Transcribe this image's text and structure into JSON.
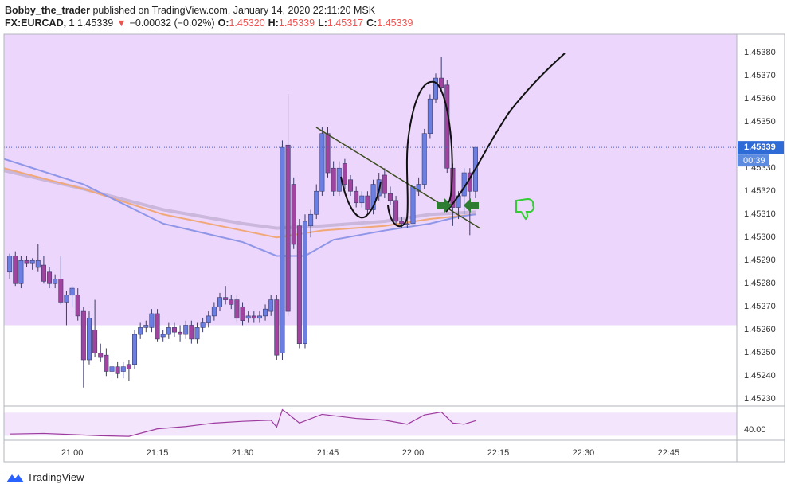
{
  "header": {
    "author": "Bobby_the_trader",
    "published": "published on TradingView.com, January 14, 2020 22:11:20 MSK",
    "symbol": "FX:EURCAD, 1",
    "price": "1.45339",
    "arrow": "▼",
    "change": "−0.00032 (−0.02%)",
    "ohlc": [
      {
        "label": "O:",
        "value": "1.45320"
      },
      {
        "label": "H:",
        "value": "1.45339"
      },
      {
        "label": "L:",
        "value": "1.45317"
      },
      {
        "label": "C:",
        "value": "1.45339"
      }
    ]
  },
  "footer": "TradingView",
  "chart_data": {
    "type": "candlestick",
    "up_color": "#6b7fe3",
    "down_color": "#a0449f",
    "x": [
      "20:49",
      "20:50",
      "20:51",
      "20:52",
      "20:53",
      "20:54",
      "20:55",
      "20:56",
      "20:57",
      "20:58",
      "20:59",
      "21:00",
      "21:01",
      "21:02",
      "21:03",
      "21:04",
      "21:05",
      "21:06",
      "21:07",
      "21:08",
      "21:09",
      "21:10",
      "21:11",
      "21:12",
      "21:13",
      "21:14",
      "21:15",
      "21:16",
      "21:17",
      "21:18",
      "21:19",
      "21:20",
      "21:21",
      "21:22",
      "21:23",
      "21:24",
      "21:25",
      "21:26",
      "21:27",
      "21:28",
      "21:29",
      "21:30",
      "21:31",
      "21:32",
      "21:33",
      "21:34",
      "21:35",
      "21:36",
      "21:37",
      "21:38",
      "21:39",
      "21:40",
      "21:41",
      "21:42",
      "21:43",
      "21:44",
      "21:45",
      "21:46",
      "21:47",
      "21:48",
      "21:49",
      "21:50",
      "21:51",
      "21:52",
      "21:53",
      "21:54",
      "21:55",
      "21:56",
      "21:57",
      "21:58",
      "21:59",
      "22:00",
      "22:01",
      "22:02",
      "22:03",
      "22:04",
      "22:05",
      "22:06",
      "22:07",
      "22:08",
      "22:09",
      "22:10",
      "22:11"
    ],
    "candles": [
      [
        1.45285,
        1.45293,
        1.45282,
        1.45292
      ],
      [
        1.45292,
        1.45294,
        1.45279,
        1.4528
      ],
      [
        1.4528,
        1.45292,
        1.45278,
        1.4529
      ],
      [
        1.4529,
        1.45292,
        1.45287,
        1.45289
      ],
      [
        1.45289,
        1.45291,
        1.45286,
        1.4529
      ],
      [
        1.45287,
        1.45297,
        1.45285,
        1.4529
      ],
      [
        1.45288,
        1.45292,
        1.4528,
        1.45281
      ],
      [
        1.45285,
        1.45287,
        1.45278,
        1.4528
      ],
      [
        1.4528,
        1.45284,
        1.45278,
        1.45282
      ],
      [
        1.45282,
        1.45292,
        1.45271,
        1.45272
      ],
      [
        1.45272,
        1.45277,
        1.45262,
        1.45275
      ],
      [
        1.45275,
        1.45279,
        1.4527,
        1.45278
      ],
      [
        1.45275,
        1.45278,
        1.45264,
        1.45266
      ],
      [
        1.45268,
        1.4527,
        1.45235,
        1.45247
      ],
      [
        1.45247,
        1.45268,
        1.45245,
        1.45265
      ],
      [
        1.4526,
        1.45273,
        1.45248,
        1.4525
      ],
      [
        1.4525,
        1.45254,
        1.45246,
        1.45248
      ],
      [
        1.45249,
        1.45252,
        1.4524,
        1.45242
      ],
      [
        1.45242,
        1.45246,
        1.4524,
        1.45244
      ],
      [
        1.45244,
        1.45246,
        1.45239,
        1.45241
      ],
      [
        1.45242,
        1.45246,
        1.45239,
        1.45244
      ],
      [
        1.45245,
        1.45247,
        1.45238,
        1.45243
      ],
      [
        1.45245,
        1.4526,
        1.45243,
        1.45258
      ],
      [
        1.45258,
        1.45263,
        1.45256,
        1.45261
      ],
      [
        1.45261,
        1.45264,
        1.45259,
        1.45262
      ],
      [
        1.45261,
        1.45269,
        1.45259,
        1.45267
      ],
      [
        1.45267,
        1.45269,
        1.45255,
        1.45256
      ],
      [
        1.45257,
        1.4526,
        1.45255,
        1.45258
      ],
      [
        1.45258,
        1.45263,
        1.45256,
        1.45261
      ],
      [
        1.45261,
        1.45263,
        1.45257,
        1.45259
      ],
      [
        1.45259,
        1.45262,
        1.45255,
        1.45258
      ],
      [
        1.45258,
        1.45264,
        1.45256,
        1.45262
      ],
      [
        1.45262,
        1.45264,
        1.45254,
        1.45256
      ],
      [
        1.45256,
        1.45263,
        1.45254,
        1.45261
      ],
      [
        1.45261,
        1.45265,
        1.45259,
        1.45263
      ],
      [
        1.45263,
        1.45268,
        1.45261,
        1.45266
      ],
      [
        1.45266,
        1.45272,
        1.45264,
        1.4527
      ],
      [
        1.4527,
        1.45276,
        1.45268,
        1.45274
      ],
      [
        1.45274,
        1.45279,
        1.45271,
        1.45273
      ],
      [
        1.45273,
        1.45275,
        1.45269,
        1.45271
      ],
      [
        1.45273,
        1.45275,
        1.45263,
        1.45265
      ],
      [
        1.4527,
        1.45272,
        1.45262,
        1.45264
      ],
      [
        1.45265,
        1.45268,
        1.45263,
        1.45266
      ],
      [
        1.45266,
        1.45268,
        1.45263,
        1.45265
      ],
      [
        1.45265,
        1.45268,
        1.45263,
        1.45266
      ],
      [
        1.45266,
        1.45271,
        1.45264,
        1.45269
      ],
      [
        1.45268,
        1.45275,
        1.45266,
        1.45273
      ],
      [
        1.45273,
        1.45275,
        1.45247,
        1.45249
      ],
      [
        1.4525,
        1.45342,
        1.45247,
        1.45339
      ],
      [
        1.4534,
        1.45362,
        1.45266,
        1.45268
      ],
      [
        1.45323,
        1.45326,
        1.45295,
        1.45297
      ],
      [
        1.45305,
        1.45308,
        1.45252,
        1.45254
      ],
      [
        1.45254,
        1.4531,
        1.45252,
        1.45307
      ],
      [
        1.45305,
        1.45312,
        1.453,
        1.4531
      ],
      [
        1.4531,
        1.45323,
        1.45308,
        1.4532
      ],
      [
        1.4532,
        1.45348,
        1.45318,
        1.45345
      ],
      [
        1.45345,
        1.45348,
        1.45326,
        1.45328
      ],
      [
        1.4533,
        1.45333,
        1.45318,
        1.4532
      ],
      [
        1.4532,
        1.45333,
        1.45318,
        1.4533
      ],
      [
        1.45332,
        1.45334,
        1.45321,
        1.45323
      ],
      [
        1.45325,
        1.45327,
        1.45318,
        1.4532
      ],
      [
        1.4532,
        1.45322,
        1.45313,
        1.45315
      ],
      [
        1.45315,
        1.4532,
        1.45313,
        1.45318
      ],
      [
        1.45318,
        1.4532,
        1.4531,
        1.45312
      ],
      [
        1.45312,
        1.45325,
        1.4531,
        1.45323
      ],
      [
        1.45318,
        1.45328,
        1.45316,
        1.45325
      ],
      [
        1.45327,
        1.4533,
        1.45317,
        1.45319
      ],
      [
        1.45319,
        1.45322,
        1.45314,
        1.45316
      ],
      [
        1.45316,
        1.45318,
        1.45305,
        1.45307
      ],
      [
        1.45307,
        1.45309,
        1.45304,
        1.45306
      ],
      [
        1.45306,
        1.45308,
        1.45304,
        1.45306
      ],
      [
        1.45306,
        1.45324,
        1.45304,
        1.45322
      ],
      [
        1.4532,
        1.45326,
        1.45318,
        1.45323
      ],
      [
        1.45323,
        1.45347,
        1.45321,
        1.45345
      ],
      [
        1.45345,
        1.45362,
        1.45343,
        1.4536
      ],
      [
        1.4536,
        1.45371,
        1.45358,
        1.45369
      ],
      [
        1.45369,
        1.45378,
        1.45363,
        1.45365
      ],
      [
        1.45366,
        1.45368,
        1.45328,
        1.4533
      ],
      [
        1.4533,
        1.45332,
        1.45305,
        1.45313
      ],
      [
        1.45313,
        1.4532,
        1.45308,
        1.45318
      ],
      [
        1.45318,
        1.4533,
        1.4531,
        1.45328
      ],
      [
        1.45328,
        1.4533,
        1.45301,
        1.4532
      ],
      [
        1.4532,
        1.45339,
        1.45317,
        1.45339
      ]
    ],
    "xlim": [
      "20:48",
      "22:57"
    ],
    "xticks": [
      "21:00",
      "21:15",
      "21:30",
      "21:45",
      "22:00",
      "22:15",
      "22:30",
      "22:45"
    ],
    "ylim": [
      1.45227,
      1.45388
    ],
    "yticks": [
      {
        "value": 1.4523,
        "label": "1.45230"
      },
      {
        "value": 1.4524,
        "label": "1.45240"
      },
      {
        "value": 1.4525,
        "label": "1.45250"
      },
      {
        "value": 1.4526,
        "label": "1.45260"
      },
      {
        "value": 1.4527,
        "label": "1.45270"
      },
      {
        "value": 1.4528,
        "label": "1.45280"
      },
      {
        "value": 1.4529,
        "label": "1.45290"
      },
      {
        "value": 1.453,
        "label": "1.45300"
      },
      {
        "value": 1.4531,
        "label": "1.45310"
      },
      {
        "value": 1.4532,
        "label": "1.45320"
      },
      {
        "value": 1.4533,
        "label": "1.45330"
      },
      {
        "value": 1.4534,
        "label": "1.45340"
      },
      {
        "value": 1.4535,
        "label": "1.45350"
      },
      {
        "value": 1.4536,
        "label": "1.45360"
      },
      {
        "value": 1.4537,
        "label": "1.45370"
      },
      {
        "value": 1.4538,
        "label": "1.45380"
      }
    ],
    "grid": true,
    "highlight_zone": {
      "from": 1.45262,
      "color": "#ecd6fb"
    },
    "last_price": {
      "value": 1.45339,
      "label": "1.45339"
    },
    "countdown": "00:39",
    "moving_averages": [
      {
        "color": "#cbb6dc",
        "x": [
          "20:48",
          "21:02",
          "21:16",
          "21:30",
          "21:36",
          "21:44",
          "21:55",
          "22:03",
          "22:11"
        ],
        "values": [
          1.45329,
          1.45321,
          1.45312,
          1.45306,
          1.45304,
          1.45305,
          1.45307,
          1.4531,
          1.45311
        ]
      },
      {
        "color": "#f0a878",
        "x": [
          "20:48",
          "21:02",
          "21:16",
          "21:30",
          "21:36",
          "21:44",
          "21:55",
          "22:03",
          "22:11"
        ],
        "values": [
          1.4533,
          1.45321,
          1.4531,
          1.45303,
          1.453,
          1.45303,
          1.45305,
          1.45308,
          1.4531
        ]
      },
      {
        "color": "#8f96e8",
        "x": [
          "20:48",
          "21:02",
          "21:16",
          "21:30",
          "21:36",
          "21:41",
          "21:46",
          "21:55",
          "22:03",
          "22:08",
          "22:11"
        ],
        "values": [
          1.45334,
          1.45323,
          1.45306,
          1.45298,
          1.45292,
          1.45292,
          1.45299,
          1.45303,
          1.45306,
          1.45309,
          1.4531
        ]
      }
    ],
    "rsi": {
      "color": "#9c3a9e",
      "x": [
        "20:49",
        "20:55",
        "21:00",
        "21:05",
        "21:10",
        "21:15",
        "21:20",
        "21:25",
        "21:30",
        "21:35",
        "21:36",
        "21:37",
        "21:38",
        "21:40",
        "21:44",
        "21:50",
        "21:55",
        "21:59",
        "22:02",
        "22:05",
        "22:07",
        "22:09",
        "22:11"
      ],
      "values": [
        33,
        34,
        32,
        30,
        29,
        42,
        46,
        52,
        55,
        57,
        45,
        75,
        68,
        52,
        67,
        60,
        57,
        50,
        66,
        71,
        52,
        50,
        56
      ],
      "ylim": [
        25,
        80
      ],
      "yticks": [
        {
          "value": 40,
          "label": "40.00"
        }
      ],
      "bands": [
        30,
        70
      ]
    }
  }
}
